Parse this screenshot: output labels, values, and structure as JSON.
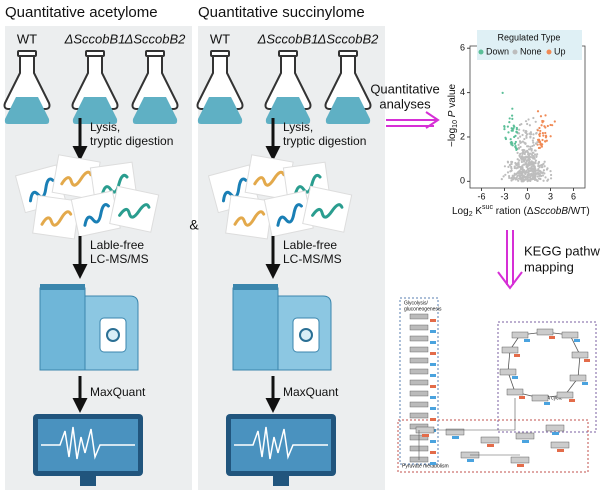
{
  "panels": [
    {
      "title": "Quantitative acetylome",
      "strains": [
        "WT",
        "ΔSccobB1",
        "ΔSccobB2"
      ],
      "steps": [
        [
          "Lysis,",
          "tryptic digestion"
        ],
        [
          "Lable-free",
          "LC-MS/MS"
        ],
        [
          "MaxQuant"
        ]
      ]
    },
    {
      "title": "Quantitative succinylome",
      "strains": [
        "WT",
        "ΔSccobB1",
        "ΔSccobB2"
      ],
      "steps": [
        [
          "Lysis,",
          "tryptic digestion"
        ],
        [
          "Lable-free",
          "LC-MS/MS"
        ],
        [
          "MaxQuant"
        ]
      ]
    }
  ],
  "connector": "&",
  "analysis_label": [
    "Quantitative",
    "analyses"
  ],
  "volcano": {
    "legend_title": "Regulated Type",
    "legend": [
      "Down",
      "None",
      "Up"
    ],
    "xticks": [
      -6,
      -3,
      0,
      3,
      6
    ],
    "yticks": [
      0,
      2,
      4,
      6
    ],
    "y_label": [
      "−log",
      "10",
      " P",
      " value"
    ],
    "x_label": [
      "Log",
      "2",
      " K",
      "suc",
      " ration (Δ",
      "SccobB",
      "/WT)"
    ]
  },
  "kegg_label": [
    "KEGG pathway",
    "mapping"
  ],
  "pathway": {
    "regions": [
      "Glycolysis/",
      "gluconeogenesis",
      "TCA cycle",
      "Pyruvate metabolism"
    ]
  }
}
